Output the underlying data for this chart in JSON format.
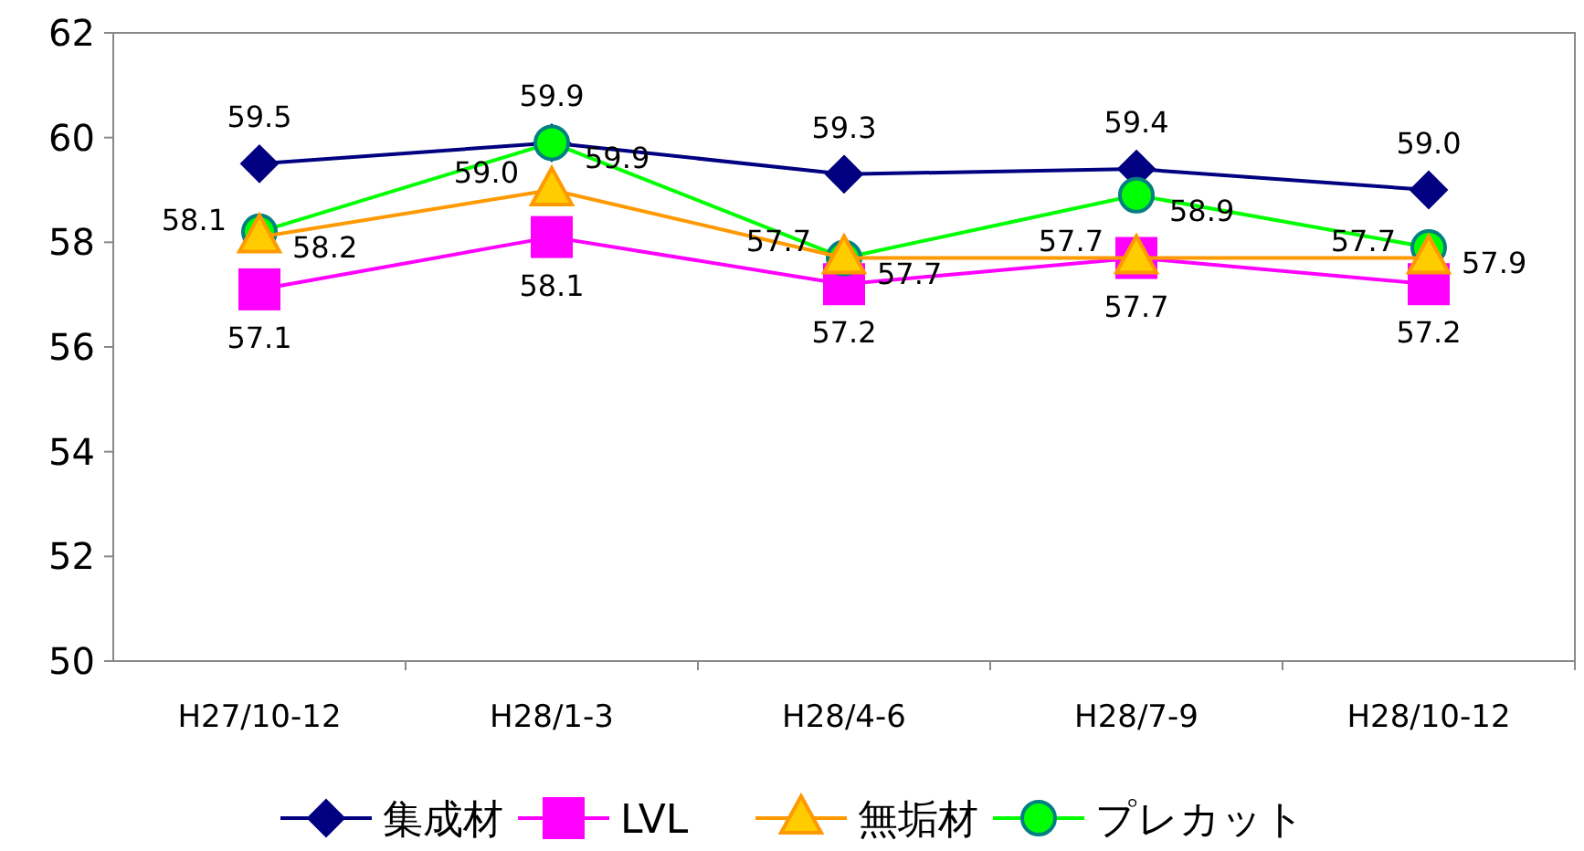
{
  "chart_data": {
    "type": "line",
    "categories": [
      "H27/10-12",
      "H28/1-3",
      "H28/4-6",
      "H28/7-9",
      "H28/10-12"
    ],
    "series": [
      {
        "name": "集成材",
        "color": "#000080",
        "marker": "diamond",
        "values": [
          59.5,
          59.9,
          59.3,
          59.4,
          59.0
        ],
        "value_labels": [
          "59.5",
          "59.9",
          "59.3",
          "59.4",
          "59.0"
        ]
      },
      {
        "name": "LVL",
        "color": "#ff00ff",
        "marker": "square",
        "values": [
          57.1,
          58.1,
          57.2,
          57.7,
          57.2
        ],
        "value_labels": [
          "57.1",
          "58.1",
          "57.2",
          "57.7",
          "57.2"
        ]
      },
      {
        "name": "無垢材",
        "color": "#ff9900",
        "marker": "triangle",
        "values": [
          58.1,
          59.0,
          57.7,
          57.7,
          57.7
        ],
        "value_labels": [
          "58.1",
          "59.0",
          "57.7",
          "57.7",
          "57.7"
        ]
      },
      {
        "name": "プレカット",
        "color": "#00ff00",
        "marker": "circle",
        "values": [
          58.2,
          59.9,
          57.7,
          58.9,
          57.9
        ],
        "value_labels": [
          "58.2",
          "59.9",
          "57.7",
          "58.9",
          "57.9"
        ]
      }
    ],
    "ylim": [
      50,
      62
    ],
    "yticks": [
      50,
      52,
      54,
      56,
      58,
      60,
      62
    ],
    "legend": "bottom"
  }
}
